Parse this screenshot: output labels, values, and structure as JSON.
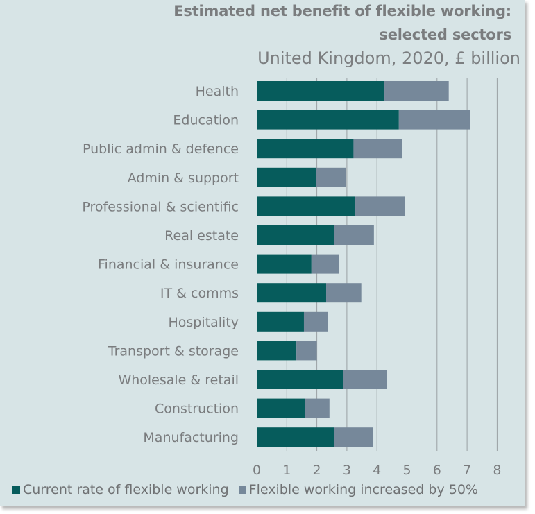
{
  "chart_data": {
    "type": "bar",
    "orientation": "horizontal",
    "stacked": true,
    "title_lines": [
      "Estimated net benefit of flexible working:",
      "selected sectors"
    ],
    "subtitle": "United Kingdom, 2020, £ billion",
    "categories": [
      "Health",
      "Education",
      "Public admin & defence",
      "Admin & support",
      "Professional & scientific",
      "Real estate",
      "Financial & insurance",
      "IT & comms",
      "Hospitality",
      "Transport & storage",
      "Wholesale & retail",
      "Construction",
      "Manufacturing"
    ],
    "series": [
      {
        "name": "Current rate of flexible working",
        "color": "#065c5c",
        "values": [
          4.25,
          4.73,
          3.22,
          1.97,
          3.28,
          2.58,
          1.82,
          2.31,
          1.57,
          1.32,
          2.88,
          1.6,
          2.57
        ]
      },
      {
        "name": "Flexible working increased by 50%",
        "color": "#76889a",
        "values": [
          2.14,
          2.36,
          1.62,
          0.99,
          1.66,
          1.32,
          0.92,
          1.17,
          0.8,
          0.68,
          1.45,
          0.82,
          1.31
        ]
      }
    ],
    "x_ticks": [
      "0",
      "1",
      "2",
      "3",
      "4",
      "5",
      "6",
      "7",
      "8"
    ],
    "xlim": [
      0,
      8
    ],
    "grid": "vertical",
    "legend_position": "bottom",
    "colors": {
      "background": "#d7e4e6",
      "gridline": "#9aa0a3",
      "text": "#7a7c7e"
    }
  }
}
